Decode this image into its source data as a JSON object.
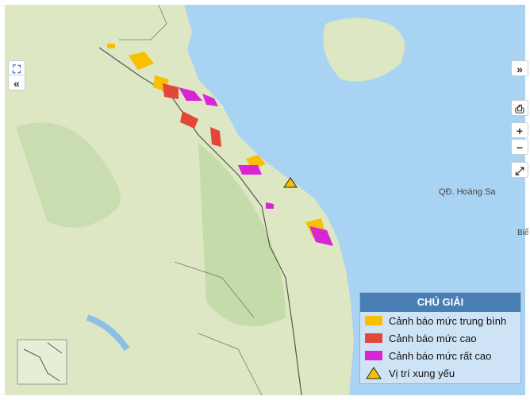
{
  "map": {
    "labels": [
      "QĐ. Hoàng Sa",
      "Biể"
    ]
  },
  "controls": {
    "collapse_right": "»",
    "collapse_left": "«",
    "zoom_in": "+",
    "zoom_out": "−"
  },
  "legend": {
    "title": "CHÚ GIẢI",
    "items": [
      "Cảnh báo mức trung bình",
      "Cảnh báo mức cao",
      "Cảnh báo mức rất cao",
      "Vị trí xung yếu"
    ]
  }
}
